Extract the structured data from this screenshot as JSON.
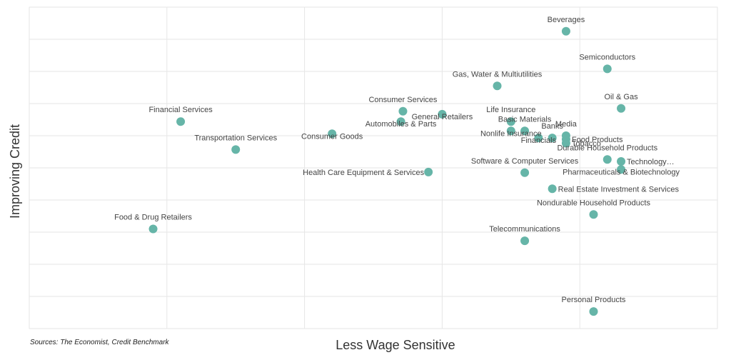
{
  "chart_data": {
    "type": "scatter",
    "title": "",
    "xlabel": "Less Wage Sensitive",
    "ylabel": "Improving Credit",
    "xlim": [
      0,
      100
    ],
    "ylim": [
      0,
      100
    ],
    "grid": true,
    "x_gridlines": [
      20,
      40,
      60,
      80
    ],
    "y_gridlines": [
      10,
      20,
      30,
      40,
      50,
      60,
      70,
      80,
      90
    ],
    "source": "Sources: The Economist, Credit Benchmark",
    "point_color": "#66b5a8",
    "points": [
      {
        "label": "Beverages",
        "x": 78.0,
        "y": 92.5,
        "label_pos": "above"
      },
      {
        "label": "Semiconductors",
        "x": 84.0,
        "y": 80.8,
        "label_pos": "above"
      },
      {
        "label": "Gas, Water & Multiutilities",
        "x": 68.0,
        "y": 75.5,
        "label_pos": "above"
      },
      {
        "label": "Oil & Gas",
        "x": 86.0,
        "y": 68.5,
        "label_pos": "above"
      },
      {
        "label": "Consumer Services",
        "x": 54.3,
        "y": 67.6,
        "label_pos": "above"
      },
      {
        "label": "General Retailers",
        "x": 60.0,
        "y": 66.7,
        "label_pos": "below"
      },
      {
        "label": "Financial Services",
        "x": 22.0,
        "y": 64.4,
        "label_pos": "above"
      },
      {
        "label": "Automobiles & Parts",
        "x": 54.0,
        "y": 64.4,
        "label_pos": "below"
      },
      {
        "label": "Life Insurance",
        "x": 70.0,
        "y": 64.4,
        "label_pos": "above"
      },
      {
        "label": "Basic Materials",
        "x": 72.0,
        "y": 61.5,
        "label_pos": "above"
      },
      {
        "label": "Nonlife Insurance",
        "x": 70.0,
        "y": 61.5,
        "label_pos": "below"
      },
      {
        "label": "Banks",
        "x": 76.0,
        "y": 59.3,
        "label_pos": "above"
      },
      {
        "label": "Financials",
        "x": 74.0,
        "y": 59.3,
        "label_pos": "below"
      },
      {
        "label": "Media",
        "x": 78.0,
        "y": 60.0,
        "label_pos": "above"
      },
      {
        "label": "Food Products",
        "x": 78.0,
        "y": 58.9,
        "label_pos": "right"
      },
      {
        "label": "Tobacco",
        "x": 78.0,
        "y": 57.7,
        "label_pos": "right"
      },
      {
        "label": "Consumer Goods",
        "x": 44.0,
        "y": 60.6,
        "label_pos": "below"
      },
      {
        "label": "Transportation Services",
        "x": 30.0,
        "y": 55.7,
        "label_pos": "above"
      },
      {
        "label": "Durable Household Products",
        "x": 84.0,
        "y": 52.6,
        "label_pos": "above"
      },
      {
        "label": "Technology…",
        "x": 86.0,
        "y": 52.0,
        "label_pos": "right"
      },
      {
        "label": "Pharmaceuticals & Biotechnology",
        "x": 86.0,
        "y": 49.5,
        "label_pos": "below"
      },
      {
        "label": "Health Care Equipment & Services",
        "x": 58.0,
        "y": 48.7,
        "label_pos": "left"
      },
      {
        "label": "Software & Computer Services",
        "x": 72.0,
        "y": 48.5,
        "label_pos": "above"
      },
      {
        "label": "Real Estate Investment & Services",
        "x": 76.0,
        "y": 43.5,
        "label_pos": "right"
      },
      {
        "label": "Nondurable Household Products",
        "x": 82.0,
        "y": 35.5,
        "label_pos": "above"
      },
      {
        "label": "Food & Drug Retailers",
        "x": 18.0,
        "y": 31.0,
        "label_pos": "above"
      },
      {
        "label": "Telecommunications",
        "x": 72.0,
        "y": 27.3,
        "label_pos": "above"
      },
      {
        "label": "Personal Products",
        "x": 82.0,
        "y": 5.3,
        "label_pos": "above"
      }
    ]
  }
}
